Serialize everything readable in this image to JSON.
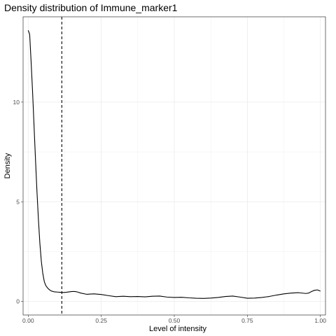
{
  "chart_data": {
    "type": "line",
    "title": "Density distribution of Immune_marker1",
    "xlabel": "Level of intensity",
    "ylabel": "Density",
    "xlim": [
      -0.0175,
      1.0175
    ],
    "ylim": [
      -0.68,
      14.28
    ],
    "x_ticks": [
      0.0,
      0.25,
      0.5,
      0.75,
      1.0
    ],
    "x_tick_labels": [
      "0.00",
      "0.25",
      "0.50",
      "0.75",
      "1.00"
    ],
    "y_ticks": [
      0,
      5,
      10
    ],
    "y_tick_labels": [
      "0",
      "5",
      "10"
    ],
    "grid": true,
    "vline": {
      "x": 0.115,
      "style": "dashed"
    },
    "series": [
      {
        "x": [
          0.0,
          0.005,
          0.01,
          0.015,
          0.02,
          0.025,
          0.03,
          0.035,
          0.04,
          0.045,
          0.05,
          0.055,
          0.06,
          0.065,
          0.07,
          0.075,
          0.08,
          0.09,
          0.1,
          0.11,
          0.12,
          0.13,
          0.14,
          0.15,
          0.16,
          0.17,
          0.18,
          0.2,
          0.225,
          0.25,
          0.275,
          0.3,
          0.325,
          0.35,
          0.375,
          0.4,
          0.425,
          0.45,
          0.475,
          0.5,
          0.525,
          0.55,
          0.575,
          0.6,
          0.625,
          0.65,
          0.675,
          0.7,
          0.725,
          0.75,
          0.775,
          0.8,
          0.825,
          0.85,
          0.875,
          0.9,
          0.925,
          0.95,
          0.96,
          0.97,
          0.98,
          0.99,
          1.0
        ],
        "y": [
          13.6,
          13.4,
          12.0,
          10.5,
          8.8,
          7.1,
          5.5,
          4.1,
          2.9,
          2.0,
          1.4,
          1.0,
          0.8,
          0.7,
          0.62,
          0.56,
          0.52,
          0.48,
          0.47,
          0.46,
          0.45,
          0.46,
          0.48,
          0.5,
          0.5,
          0.47,
          0.42,
          0.36,
          0.38,
          0.35,
          0.29,
          0.24,
          0.26,
          0.24,
          0.25,
          0.23,
          0.26,
          0.27,
          0.22,
          0.2,
          0.21,
          0.18,
          0.16,
          0.15,
          0.17,
          0.2,
          0.25,
          0.27,
          0.22,
          0.16,
          0.17,
          0.2,
          0.25,
          0.32,
          0.38,
          0.42,
          0.44,
          0.4,
          0.42,
          0.5,
          0.56,
          0.58,
          0.52
        ]
      }
    ]
  }
}
